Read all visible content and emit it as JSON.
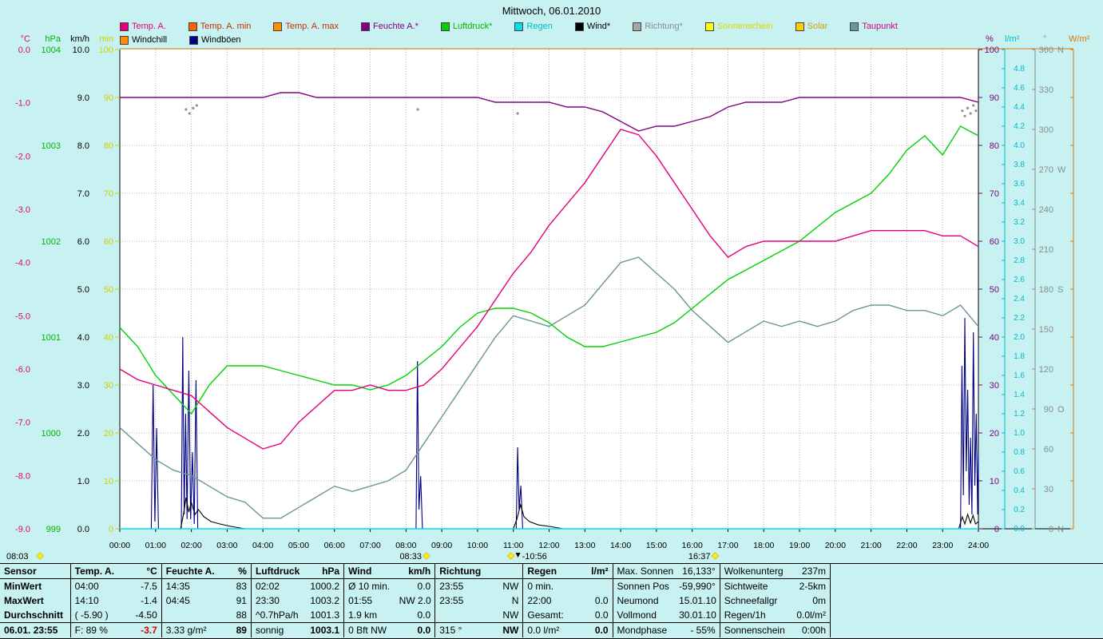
{
  "title": "Mittwoch, 06.01.2010",
  "legend": {
    "row1": [
      {
        "label": "Temp. A.",
        "color": "#e4007c",
        "box": "#e4007c"
      },
      {
        "label": "Temp. A. min",
        "color": "#c03000",
        "box": "#ff6000"
      },
      {
        "label": "Temp. A. max",
        "color": "#c03000",
        "box": "#ff9000"
      },
      {
        "label": "Feuchte A.*",
        "color": "#800080",
        "box": "#800080"
      },
      {
        "label": "Luftdruck*",
        "color": "#00b400",
        "box": "#00d200"
      },
      {
        "label": "Regen",
        "color": "#00b8cc",
        "box": "#00e0e8"
      },
      {
        "label": "Wind*",
        "color": "#000000",
        "box": "#000000"
      },
      {
        "label": "Richtung*",
        "color": "#8c8c8c",
        "box": "#a8a8a8"
      },
      {
        "label": "Sonnenschein",
        "color": "#d8d800",
        "box": "#ffff00"
      },
      {
        "label": "Solar",
        "color": "#d0a000",
        "box": "#ffcc00"
      },
      {
        "label": "Taupunkt",
        "color": "#d0008c",
        "box": "#6b9598"
      }
    ],
    "row2": [
      {
        "label": "Windchill",
        "color": "#000000",
        "box": "#ff8c00"
      },
      {
        "label": "Windböen",
        "color": "#000000",
        "box": "#000082"
      }
    ]
  },
  "axes": {
    "left": [
      {
        "unit": "°C",
        "color": "#e4007c",
        "ticks": [
          "0.0",
          "-1.0",
          "-2.0",
          "-3.0",
          "-4.0",
          "-5.0",
          "-6.0",
          "-7.0",
          "-8.0",
          "-9.0"
        ]
      },
      {
        "unit": "hPa",
        "color": "#00b400",
        "ticks": [
          "1004",
          "1003",
          "1002",
          "1001",
          "1000",
          "999"
        ]
      },
      {
        "unit": "km/h",
        "color": "#000000",
        "ticks": [
          "10.0",
          "9.0",
          "8.0",
          "7.0",
          "6.0",
          "5.0",
          "4.0",
          "3.0",
          "2.0",
          "1.0",
          "0.0"
        ]
      },
      {
        "unit": "min",
        "color": "#d0d000",
        "ticks": [
          "100",
          "90",
          "80",
          "70",
          "60",
          "50",
          "40",
          "30",
          "20",
          "10",
          "0"
        ]
      }
    ],
    "right": [
      {
        "unit": "%",
        "color": "#800080",
        "ticks": [
          "100",
          "90",
          "80",
          "70",
          "60",
          "50",
          "40",
          "30",
          "20",
          "10",
          "0"
        ]
      },
      {
        "unit": "l/m²",
        "color": "#00b8cc",
        "ticks": [
          "4.8",
          "4.6",
          "4.4",
          "4.2",
          "4.0",
          "3.8",
          "3.6",
          "3.4",
          "3.2",
          "3.0",
          "2.8",
          "2.6",
          "2.4",
          "2.2",
          "2.0",
          "1.8",
          "1.6",
          "1.4",
          "1.2",
          "1.0",
          "0.8",
          "0.6",
          "0.4",
          "0.2",
          "0.0"
        ]
      },
      {
        "unit": "°",
        "color": "#8c8c8c",
        "ticks": [
          "360 N",
          "330",
          "300",
          "270 W",
          "240",
          "210",
          "180 S",
          "150",
          "120",
          "90 O",
          "60",
          "30",
          "0 N"
        ]
      },
      {
        "unit": "W/m²",
        "color": "#e07800",
        "ticks": []
      }
    ],
    "x": {
      "ticks": [
        "00:00",
        "01:00",
        "02:00",
        "03:00",
        "04:00",
        "05:00",
        "06:00",
        "07:00",
        "08:00",
        "09:00",
        "10:00",
        "11:00",
        "12:00",
        "13:00",
        "14:00",
        "15:00",
        "16:00",
        "17:00",
        "18:00",
        "19:00",
        "20:00",
        "21:00",
        "22:00",
        "23:00",
        "24:00"
      ]
    }
  },
  "chart_data": {
    "type": "line",
    "title": "Mittwoch, 06.01.2010",
    "x_unit": "hour",
    "x_range": [
      0,
      24
    ],
    "grid": true,
    "scales": {
      "temp_c": {
        "top": 0,
        "bottom": -9
      },
      "hpa": {
        "top": 1004,
        "bottom": 999
      },
      "kmh": {
        "top": 10,
        "bottom": 0
      },
      "percent": {
        "top": 100,
        "bottom": 0
      },
      "lm2": {
        "top": 5,
        "bottom": 0
      },
      "deg": {
        "top": 360,
        "bottom": 0
      }
    },
    "series": [
      {
        "name": "Windböen",
        "color": "#000082",
        "scale": "kmh",
        "type": "line",
        "points": [
          [
            0,
            0
          ],
          [
            0.88,
            0
          ],
          [
            0.93,
            3.0
          ],
          [
            0.98,
            0.15
          ],
          [
            1.03,
            2.1
          ],
          [
            1.08,
            0
          ],
          [
            1.72,
            0
          ],
          [
            1.76,
            4.0
          ],
          [
            1.8,
            0.3
          ],
          [
            1.84,
            2.4
          ],
          [
            1.88,
            0.2
          ],
          [
            1.93,
            3.3
          ],
          [
            1.98,
            0.2
          ],
          [
            2.03,
            1.6
          ],
          [
            2.08,
            0.1
          ],
          [
            2.13,
            3.1
          ],
          [
            2.18,
            0
          ],
          [
            8.28,
            0
          ],
          [
            8.32,
            3.5
          ],
          [
            8.36,
            0.4
          ],
          [
            8.41,
            1.1
          ],
          [
            8.46,
            0
          ],
          [
            11.08,
            0
          ],
          [
            11.12,
            1.7
          ],
          [
            11.16,
            0.4
          ],
          [
            11.21,
            0.9
          ],
          [
            11.26,
            0
          ],
          [
            23.5,
            0
          ],
          [
            23.54,
            3.4
          ],
          [
            23.58,
            0.7
          ],
          [
            23.62,
            4.4
          ],
          [
            23.66,
            1.2
          ],
          [
            23.7,
            2.9
          ],
          [
            23.74,
            0.5
          ],
          [
            23.78,
            1.9
          ],
          [
            23.82,
            0.3
          ],
          [
            23.86,
            4.1
          ],
          [
            23.9,
            0.9
          ],
          [
            23.94,
            2.4
          ],
          [
            23.98,
            0.3
          ],
          [
            24,
            1.6
          ]
        ]
      },
      {
        "name": "Wind",
        "color": "#000000",
        "scale": "kmh",
        "type": "line",
        "points": [
          [
            0,
            0
          ],
          [
            1.7,
            0
          ],
          [
            1.78,
            0.3
          ],
          [
            1.85,
            0.65
          ],
          [
            1.93,
            0.35
          ],
          [
            2.0,
            0.55
          ],
          [
            2.1,
            0.3
          ],
          [
            2.2,
            0.4
          ],
          [
            2.35,
            0.25
          ],
          [
            2.55,
            0.15
          ],
          [
            2.8,
            0.1
          ],
          [
            3.1,
            0.05
          ],
          [
            3.5,
            0
          ],
          [
            11.0,
            0
          ],
          [
            11.1,
            0.2
          ],
          [
            11.2,
            0.5
          ],
          [
            11.3,
            0.25
          ],
          [
            11.45,
            0.15
          ],
          [
            11.7,
            0.08
          ],
          [
            12.0,
            0.05
          ],
          [
            12.4,
            0
          ],
          [
            23.45,
            0
          ],
          [
            23.55,
            0.25
          ],
          [
            23.62,
            0.1
          ],
          [
            23.7,
            0.3
          ],
          [
            23.78,
            0.12
          ],
          [
            23.85,
            0.28
          ],
          [
            23.92,
            0.1
          ],
          [
            24,
            0.15
          ]
        ]
      },
      {
        "name": "Regen",
        "color": "#00e0e8",
        "scale": "lm2",
        "type": "line",
        "points": [
          [
            0,
            0
          ],
          [
            24,
            0
          ]
        ]
      },
      {
        "name": "Taupunkt",
        "color": "#6b9598",
        "scale": "temp_c",
        "type": "line",
        "x_step_h": 0.5,
        "values": [
          -7.1,
          -7.4,
          -7.7,
          -7.9,
          -8.0,
          -8.2,
          -8.4,
          -8.5,
          -8.8,
          -8.8,
          -8.6,
          -8.4,
          -8.2,
          -8.3,
          -8.2,
          -8.1,
          -7.9,
          -7.4,
          -6.9,
          -6.4,
          -5.9,
          -5.4,
          -5.0,
          -5.1,
          -5.2,
          -5.0,
          -4.8,
          -4.4,
          -4.0,
          -3.9,
          -4.2,
          -4.5,
          -4.9,
          -5.2,
          -5.5,
          -5.3,
          -5.1,
          -5.2,
          -5.1,
          -5.2,
          -5.1,
          -4.9,
          -4.8,
          -4.8,
          -4.9,
          -4.9,
          -5.0,
          -4.8,
          -5.2
        ]
      },
      {
        "name": "Luftdruck",
        "color": "#00d200",
        "scale": "hpa",
        "type": "line",
        "x_step_h": 0.5,
        "values": [
          1001.1,
          1000.9,
          1000.6,
          1000.4,
          1000.2,
          1000.5,
          1000.7,
          1000.7,
          1000.7,
          1000.65,
          1000.6,
          1000.55,
          1000.5,
          1000.5,
          1000.45,
          1000.5,
          1000.6,
          1000.75,
          1000.9,
          1001.1,
          1001.25,
          1001.3,
          1001.3,
          1001.25,
          1001.15,
          1001.0,
          1000.9,
          1000.9,
          1000.95,
          1001.0,
          1001.05,
          1001.15,
          1001.3,
          1001.45,
          1001.6,
          1001.7,
          1001.8,
          1001.9,
          1002.0,
          1002.15,
          1002.3,
          1002.4,
          1002.5,
          1002.7,
          1002.95,
          1003.1,
          1002.9,
          1003.2,
          1003.1
        ]
      },
      {
        "name": "Temp. A.",
        "color": "#e4007c",
        "scale": "temp_c",
        "type": "line",
        "x_step_h": 0.5,
        "values": [
          -6.0,
          -6.2,
          -6.3,
          -6.4,
          -6.5,
          -6.8,
          -7.1,
          -7.3,
          -7.5,
          -7.4,
          -7.0,
          -6.7,
          -6.4,
          -6.4,
          -6.3,
          -6.4,
          -6.4,
          -6.3,
          -6.0,
          -5.6,
          -5.2,
          -4.7,
          -4.2,
          -3.8,
          -3.3,
          -2.9,
          -2.5,
          -2.0,
          -1.5,
          -1.6,
          -2.0,
          -2.5,
          -3.0,
          -3.5,
          -3.9,
          -3.7,
          -3.6,
          -3.6,
          -3.6,
          -3.6,
          -3.6,
          -3.5,
          -3.4,
          -3.4,
          -3.4,
          -3.4,
          -3.5,
          -3.5,
          -3.7
        ]
      },
      {
        "name": "Feuchte A.",
        "color": "#800080",
        "scale": "percent",
        "type": "line",
        "x_step_h": 0.5,
        "values": [
          90,
          90,
          90,
          90,
          90,
          90,
          90,
          90,
          90,
          91,
          91,
          90,
          90,
          90,
          90,
          90,
          90,
          90,
          90,
          90,
          90,
          89,
          89,
          89,
          89,
          88,
          88,
          87,
          85,
          83,
          84,
          84,
          85,
          86,
          88,
          89,
          89,
          89,
          90,
          90,
          90,
          90,
          90,
          90,
          90,
          90,
          90,
          90,
          89
        ]
      },
      {
        "name": "Richtung",
        "color": "#909090",
        "scale": "deg",
        "type": "dots",
        "points": [
          [
            1.85,
            315
          ],
          [
            1.95,
            312
          ],
          [
            2.05,
            316
          ],
          [
            2.15,
            318
          ],
          [
            8.33,
            315
          ],
          [
            11.12,
            312
          ],
          [
            23.55,
            314
          ],
          [
            23.62,
            310
          ],
          [
            23.7,
            316
          ],
          [
            23.78,
            312
          ],
          [
            23.86,
            318
          ],
          [
            23.93,
            314
          ]
        ]
      }
    ]
  },
  "annotations": [
    {
      "text": "08:03",
      "x_abs": 8,
      "marker": "sun"
    },
    {
      "text": "08:33",
      "time": 8.55,
      "side": "left",
      "marker": "sun"
    },
    {
      "text": "-10:56",
      "time": 10.93,
      "side": "right",
      "marker": "sun",
      "arrow": true
    },
    {
      "text": "16:37",
      "time": 16.62,
      "side": "left",
      "marker": "sun"
    }
  ],
  "table": {
    "rows": [
      [
        "Sensor",
        "Temp. A.",
        "°C",
        "Feuchte A.",
        "%",
        "Luftdruck",
        "hPa",
        "Wind",
        "km/h",
        "Richtung",
        "",
        "Regen",
        "l/m²",
        "Max. Sonnen",
        "16,133°",
        "Wolkenunterg",
        "237m"
      ],
      [
        "MinWert",
        "04:00",
        "-7.5",
        "14:35",
        "83",
        "02:02",
        "1000.2",
        "Ø 10 min.",
        "0.0",
        "23:55",
        "NW",
        "0 min.",
        "",
        "Sonnen Pos",
        "-59,990°",
        "Sichtweite",
        "2-5km"
      ],
      [
        "MaxWert",
        "14:10",
        "-1.4",
        "04:45",
        "91",
        "23:30",
        "1003.2",
        "01:55",
        "NW 2.0",
        "23:55",
        "N",
        "22:00",
        "0.0",
        "Neumond",
        "15.01.10",
        "Schneefallgr",
        "0m"
      ],
      [
        "Durchschnitt",
        "( -5.90 )",
        "-4.50",
        "",
        "88",
        "^0.7hPa/h",
        "1001.3",
        "1.9 km",
        "0.0",
        "",
        "NW",
        "Gesamt:",
        "0.0",
        "Vollmond",
        "30.01.10",
        "Regen/1h",
        "0.0l/m²"
      ],
      [
        "06.01. 23:55",
        "F: 89 %",
        "-3.7",
        "3.33 g/m²",
        "89",
        "sonnig",
        "1003.1",
        "0 Bft NW",
        "0.0",
        "315 °",
        "NW",
        "0.0 l/m²",
        "0.0",
        "Mondphase",
        "- 55%",
        "Sonnenschein",
        "0:00h"
      ]
    ]
  }
}
